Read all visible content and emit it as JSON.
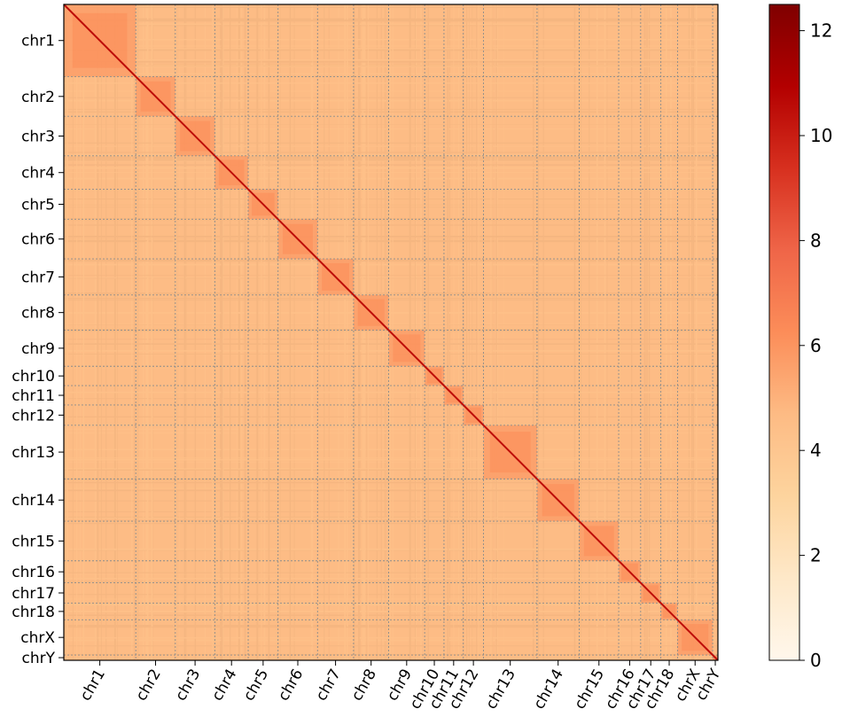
{
  "chart_data": {
    "type": "heatmap",
    "title": "",
    "xlabel": "",
    "ylabel": "",
    "grid": true,
    "legend": "colorbar-right",
    "colorbar": {
      "min": 0,
      "max": 12.5,
      "ticks": [
        "0",
        "2",
        "4",
        "6",
        "8",
        "10",
        "12"
      ],
      "colors": [
        "#fff7ec",
        "#fee8c8",
        "#fdd49e",
        "#fdbb84",
        "#fc8d59",
        "#ef6548",
        "#d7301f",
        "#b30000",
        "#7f0000"
      ]
    },
    "background_value": 4.6,
    "diagonal_value": 10.5,
    "chromosomes": [
      {
        "name": "chr1",
        "length": 82
      },
      {
        "name": "chr2",
        "length": 45
      },
      {
        "name": "chr3",
        "length": 45
      },
      {
        "name": "chr4",
        "length": 38
      },
      {
        "name": "chr5",
        "length": 34
      },
      {
        "name": "chr6",
        "length": 45
      },
      {
        "name": "chr7",
        "length": 41
      },
      {
        "name": "chr8",
        "length": 40
      },
      {
        "name": "chr9",
        "length": 41
      },
      {
        "name": "chr10",
        "length": 22
      },
      {
        "name": "chr11",
        "length": 22
      },
      {
        "name": "chr12",
        "length": 23
      },
      {
        "name": "chr13",
        "length": 61
      },
      {
        "name": "chr14",
        "length": 48
      },
      {
        "name": "chr15",
        "length": 45
      },
      {
        "name": "chr16",
        "length": 25
      },
      {
        "name": "chr17",
        "length": 23
      },
      {
        "name": "chr18",
        "length": 19
      },
      {
        "name": "chrX",
        "length": 40
      },
      {
        "name": "chrY",
        "length": 6
      }
    ]
  }
}
